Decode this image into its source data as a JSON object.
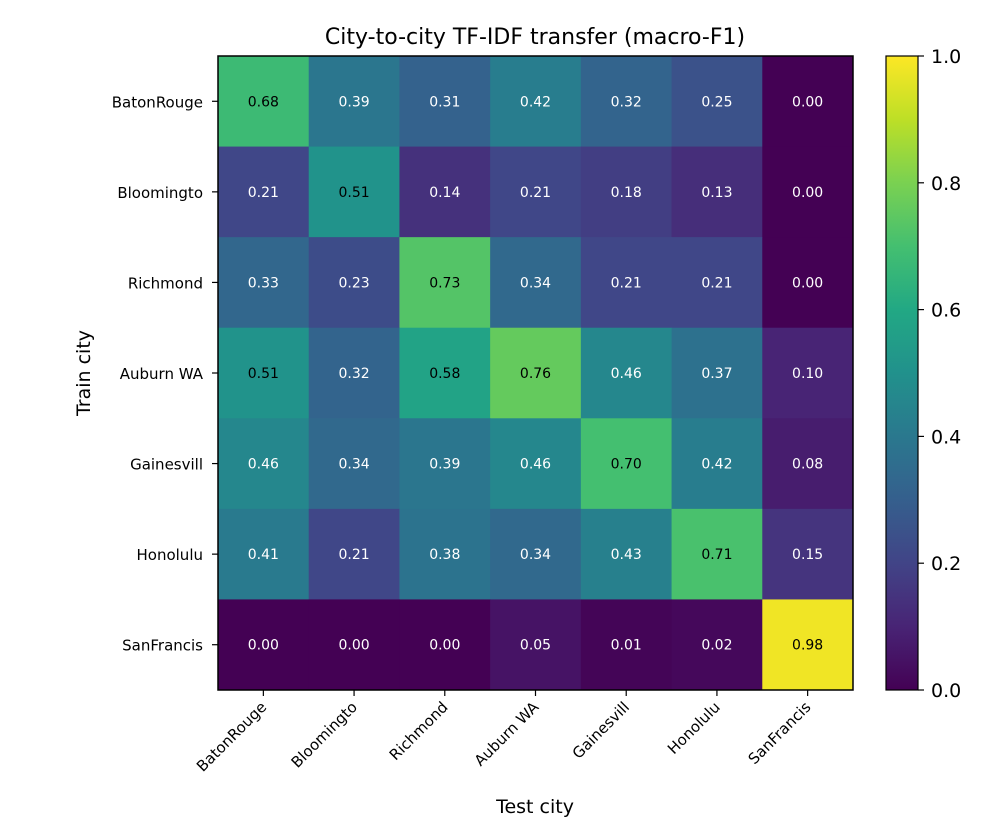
{
  "chart_data": {
    "type": "heatmap",
    "title": "City-to-city TF-IDF transfer (macro-F1)",
    "xlabel": "Test city",
    "ylabel": "Train city",
    "x_categories": [
      "BatonRouge",
      "Bloomingto",
      "Richmond",
      "Auburn WA",
      "Gainesvill",
      "Honolulu",
      "SanFrancis"
    ],
    "y_categories": [
      "BatonRouge",
      "Bloomingto",
      "Richmond",
      "Auburn WA",
      "Gainesvill",
      "Honolulu",
      "SanFrancis"
    ],
    "values": [
      [
        0.68,
        0.39,
        0.31,
        0.42,
        0.32,
        0.25,
        0.0
      ],
      [
        0.21,
        0.51,
        0.14,
        0.21,
        0.18,
        0.13,
        0.0
      ],
      [
        0.33,
        0.23,
        0.73,
        0.34,
        0.21,
        0.21,
        0.0
      ],
      [
        0.51,
        0.32,
        0.58,
        0.76,
        0.46,
        0.37,
        0.1
      ],
      [
        0.46,
        0.34,
        0.39,
        0.46,
        0.7,
        0.42,
        0.08
      ],
      [
        0.41,
        0.21,
        0.38,
        0.34,
        0.43,
        0.71,
        0.15
      ],
      [
        0.0,
        0.0,
        0.0,
        0.05,
        0.01,
        0.02,
        0.98
      ]
    ],
    "colorbar": {
      "range": [
        0.0,
        1.0
      ],
      "ticks": [
        0.0,
        0.2,
        0.4,
        0.6,
        0.8,
        1.0
      ],
      "tick_labels": [
        "0.0",
        "0.2",
        "0.4",
        "0.6",
        "0.8",
        "1.0"
      ],
      "colormap": "viridis"
    },
    "grid": false
  }
}
